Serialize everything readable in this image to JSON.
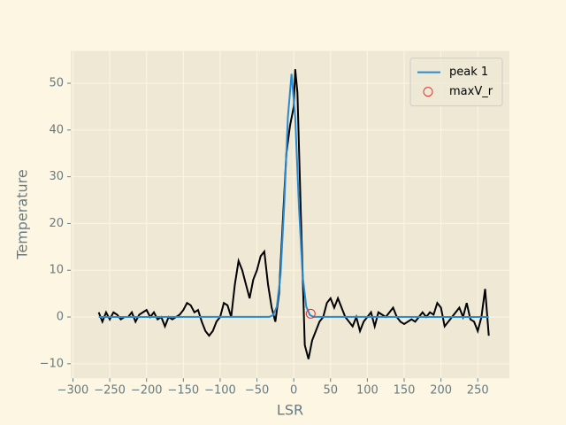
{
  "chart_data": {
    "type": "line",
    "xlabel": "LSR",
    "ylabel": "Temperature",
    "xlim": [
      -303,
      293
    ],
    "ylim": [
      -13.1,
      56.9
    ],
    "xticks": [
      {
        "value": -300,
        "label": "−300"
      },
      {
        "value": -250,
        "label": "−250"
      },
      {
        "value": -200,
        "label": "−200"
      },
      {
        "value": -150,
        "label": "−150"
      },
      {
        "value": -100,
        "label": "−100"
      },
      {
        "value": -50,
        "label": "−50"
      },
      0,
      50,
      100,
      150,
      200,
      250
    ],
    "yticks": [
      {
        "value": -10,
        "label": "−10"
      },
      0,
      10,
      20,
      30,
      40,
      50
    ],
    "grid": true,
    "legend": "upper right",
    "series": [
      {
        "type": "line",
        "color": "#000000",
        "x": [
          -265,
          -260,
          -255,
          -250,
          -245,
          -240,
          -235,
          -230,
          -225,
          -220,
          -215,
          -210,
          -205,
          -200,
          -195,
          -190,
          -185,
          -180,
          -175,
          -170,
          -165,
          -160,
          -155,
          -150,
          -145,
          -140,
          -135,
          -130,
          -125,
          -120,
          -115,
          -110,
          -105,
          -100,
          -95,
          -90,
          -85,
          -80,
          -75,
          -70,
          -65,
          -60,
          -55,
          -50,
          -45,
          -40,
          -35,
          -30,
          -25,
          -20,
          -15,
          -10,
          -5,
          0,
          2,
          5,
          10,
          15,
          20,
          25,
          30,
          35,
          40,
          45,
          50,
          55,
          60,
          65,
          70,
          75,
          80,
          85,
          90,
          95,
          100,
          105,
          110,
          115,
          120,
          125,
          130,
          135,
          140,
          145,
          150,
          155,
          160,
          165,
          170,
          175,
          180,
          185,
          190,
          195,
          200,
          205,
          210,
          215,
          220,
          225,
          230,
          235,
          240,
          245,
          250,
          255,
          260,
          265
        ],
        "values": [
          1,
          -1,
          1,
          -0.5,
          1,
          0.5,
          -0.5,
          0,
          0,
          1,
          -1,
          0.5,
          1,
          1.5,
          0,
          1,
          -0.5,
          0,
          -2,
          0,
          -0.5,
          0,
          0.5,
          1.5,
          3,
          2.5,
          1,
          1.5,
          -1,
          -3,
          -4,
          -3,
          -1,
          0,
          3,
          2.5,
          0,
          7,
          12,
          10,
          7,
          4,
          8,
          10,
          13,
          14,
          7,
          2,
          -1,
          5,
          20,
          35,
          41,
          45,
          53,
          48,
          20,
          -6,
          -9,
          -5,
          -3,
          -1,
          0,
          3,
          4,
          2,
          4,
          2,
          0,
          -1,
          -2,
          0,
          -3,
          -1,
          0,
          1,
          -2,
          1,
          0.5,
          0,
          1,
          2,
          0,
          -1,
          -1.5,
          -1,
          -0.5,
          -1,
          0,
          1,
          0,
          1,
          0.5,
          3,
          2,
          -2,
          -1,
          0,
          1,
          2,
          0,
          3,
          -0.5,
          -1,
          -3,
          0,
          6,
          -4
        ]
      },
      {
        "type": "line",
        "name": "peak 1",
        "color": "#268bd2",
        "x": [
          -265,
          -33,
          -28,
          -23,
          -18,
          -13,
          -8,
          -3,
          2,
          7,
          12,
          17,
          22,
          27,
          265
        ],
        "values": [
          0,
          0.04,
          0.4,
          2.2,
          8.9,
          23.8,
          42.7,
          52,
          42.7,
          23.8,
          8.9,
          2.2,
          0.4,
          0.04,
          0
        ]
      },
      {
        "type": "scatter",
        "name": "maxV_r",
        "color": "#dc322f",
        "x": [
          23
        ],
        "values": [
          0.7
        ]
      }
    ]
  }
}
